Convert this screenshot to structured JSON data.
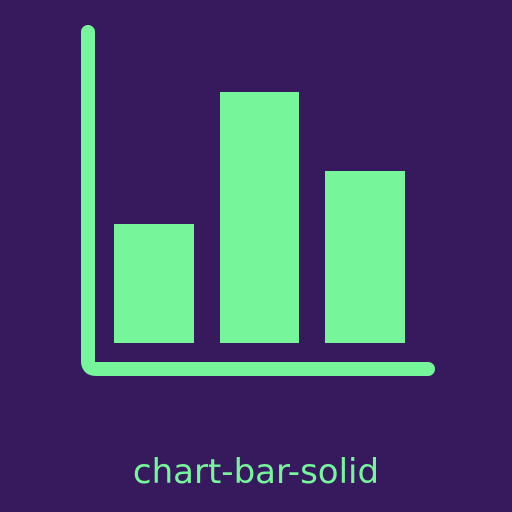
{
  "icon": {
    "name": "chart-bar-solid",
    "background_color": "#371a5e",
    "foreground_color": "#76f59a"
  },
  "caption": {
    "text": "chart-bar-solid"
  }
}
